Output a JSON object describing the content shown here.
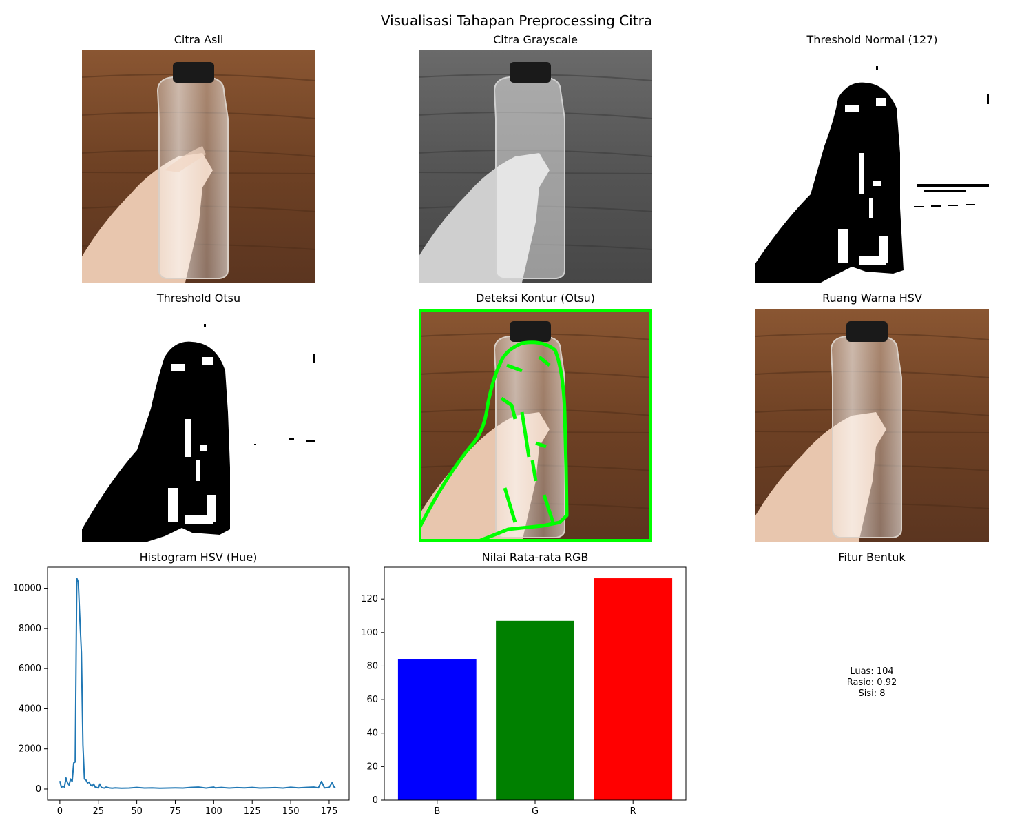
{
  "figure": {
    "title": "Visualisasi Tahapan Preprocessing Citra"
  },
  "panels": {
    "original": {
      "title": "Citra Asli"
    },
    "grayscale": {
      "title": "Citra Grayscale"
    },
    "threshold_normal": {
      "title": "Threshold Normal (127)"
    },
    "threshold_otsu": {
      "title": "Threshold Otsu"
    },
    "contour": {
      "title": "Deteksi Kontur (Otsu)",
      "contour_color": "#00ff00"
    },
    "hsv": {
      "title": "Ruang Warna HSV"
    },
    "shape_features": {
      "title": "Fitur Bentuk",
      "lines": [
        "Luas: 104",
        "Rasio: 0.92",
        "Sisi: 8"
      ]
    }
  },
  "colors": {
    "line": "#1f77b4",
    "wood": "#7a4a2a",
    "bar_b": "#0000ff",
    "bar_g": "#008000",
    "bar_r": "#ff0000"
  },
  "chart_data": [
    {
      "type": "line",
      "title": "Histogram HSV (Hue)",
      "xlabel": "",
      "ylabel": "",
      "xlim": [
        -8,
        188
      ],
      "ylim": [
        -550,
        11050
      ],
      "xticks": [
        0,
        25,
        50,
        75,
        100,
        125,
        150,
        175
      ],
      "yticks": [
        0,
        2000,
        4000,
        6000,
        8000,
        10000
      ],
      "grid": false,
      "series": [
        {
          "x": [
            0,
            1,
            2,
            3,
            4,
            5,
            6,
            7,
            8,
            9,
            10,
            11,
            12,
            13,
            14,
            15,
            16,
            17,
            18,
            19,
            20,
            21,
            22,
            23,
            24,
            25,
            26,
            27,
            28,
            29,
            30,
            32,
            34,
            36,
            38,
            40,
            45,
            50,
            55,
            60,
            65,
            70,
            75,
            80,
            85,
            90,
            95,
            100,
            101,
            105,
            110,
            115,
            120,
            125,
            130,
            135,
            140,
            145,
            150,
            155,
            160,
            165,
            168,
            170,
            172,
            175,
            177,
            178,
            179
          ],
          "y": [
            400,
            80,
            150,
            100,
            550,
            300,
            200,
            500,
            380,
            1300,
            1350,
            10500,
            10300,
            8500,
            6800,
            2200,
            500,
            450,
            300,
            350,
            200,
            150,
            250,
            100,
            80,
            50,
            250,
            80,
            60,
            50,
            100,
            60,
            40,
            60,
            50,
            40,
            50,
            80,
            50,
            60,
            40,
            50,
            60,
            50,
            80,
            100,
            50,
            100,
            60,
            80,
            50,
            70,
            60,
            80,
            50,
            60,
            70,
            50,
            90,
            60,
            80,
            100,
            60,
            380,
            60,
            80,
            330,
            120,
            50
          ]
        }
      ]
    },
    {
      "type": "bar",
      "title": "Nilai Rata-rata RGB",
      "xlabel": "",
      "ylabel": "",
      "categories": [
        "B",
        "G",
        "R"
      ],
      "values": [
        84.3,
        107.0,
        132.4
      ],
      "ylim": [
        0,
        139
      ],
      "yticks": [
        0,
        20,
        40,
        60,
        80,
        100,
        120
      ],
      "grid": false
    }
  ]
}
